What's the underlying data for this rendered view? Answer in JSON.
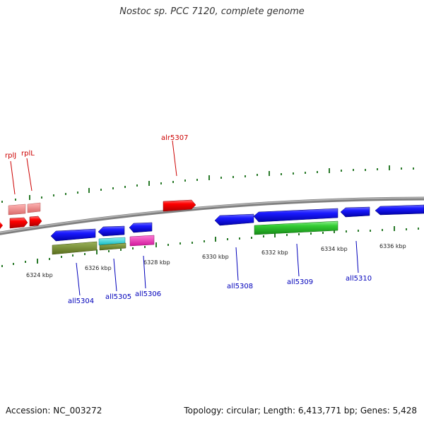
{
  "title": "Nostoc sp. PCC 7120, complete genome",
  "footer": {
    "accession": "Accession: NC_003272",
    "stats": "Topology: circular; Length: 6,413,771 bp; Genes: 5,428"
  },
  "colors": {
    "backbone": "#8a8a8a",
    "tick": "#2a7a2a",
    "forward_label": "#cc0000",
    "reverse_label": "#0000bb"
  },
  "scale_labels": [
    "6324 kbp",
    "6326 kbp",
    "6328 kbp",
    "6330 kbp",
    "6332 kbp",
    "6334 kbp",
    "6336 kbp"
  ],
  "gene_labels": {
    "rplJ": "rplJ",
    "rplL": "rplL",
    "alr5307": "alr5307",
    "all5304": "all5304",
    "all5305": "all5305",
    "all5306": "all5306",
    "all5308": "all5308",
    "all5309": "all5309",
    "all5310": "all5310"
  }
}
